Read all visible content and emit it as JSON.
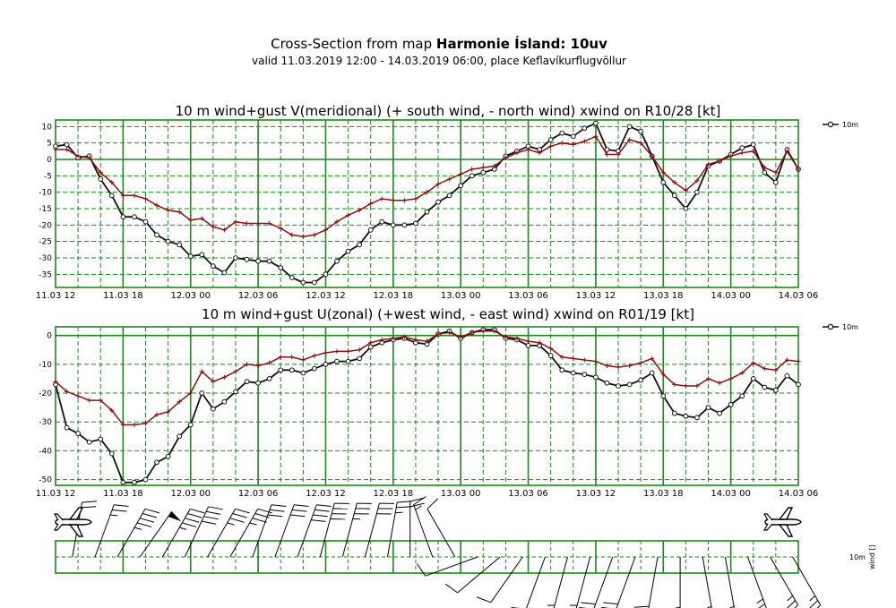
{
  "header": {
    "title_prefix": "Cross-Section from map ",
    "title_bold": "Harmonie Ísland: 10uv",
    "subtitle": "valid 11.03.2019 12:00 - 14.03.2019 06:00, place Keflavíkurflugvöllur"
  },
  "colors": {
    "grid": "#1a8a1a",
    "wind": "#111111",
    "gust": "#8b1010",
    "barb": "#000000"
  },
  "chart_data": [
    {
      "type": "line",
      "title": "10 m wind+gust V(meridional) (+ south wind, - north wind) xwind on R10/28 [kt]",
      "x_range": [
        0,
        66
      ],
      "x_ticks": [
        {
          "x": 0,
          "label": "11.03 12"
        },
        {
          "x": 6,
          "label": "11.03 18"
        },
        {
          "x": 12,
          "label": "12.03 00"
        },
        {
          "x": 18,
          "label": "12.03 06"
        },
        {
          "x": 24,
          "label": "12.03 12"
        },
        {
          "x": 30,
          "label": "12.03 18"
        },
        {
          "x": 36,
          "label": "13.03 00"
        },
        {
          "x": 42,
          "label": "13.03 06"
        },
        {
          "x": 48,
          "label": "13.03 12"
        },
        {
          "x": 54,
          "label": "13.03 18"
        },
        {
          "x": 60,
          "label": "14.03 00"
        },
        {
          "x": 66,
          "label": "14.03 06"
        }
      ],
      "ylim": [
        -39,
        12
      ],
      "y_ticks": [
        10,
        5,
        0,
        -5,
        -10,
        -15,
        -20,
        -25,
        -30,
        -35
      ],
      "grid": true,
      "legend_position": "top-right",
      "legend": "10m",
      "series": [
        {
          "role": "wind",
          "x": [
            0,
            1,
            2,
            3,
            4,
            5,
            6,
            7,
            8,
            9,
            10,
            11,
            12,
            13,
            14,
            15,
            16,
            17,
            18,
            19,
            20,
            21,
            22,
            23,
            24,
            25,
            26,
            27,
            28,
            29,
            30,
            31,
            32,
            33,
            34,
            35,
            36,
            37,
            38,
            39,
            40,
            41,
            42,
            43,
            44,
            45,
            46,
            47,
            48,
            49,
            50,
            51,
            52,
            53,
            54,
            55,
            56,
            57,
            58,
            59,
            60,
            61,
            62,
            63,
            64,
            65,
            66
          ],
          "values": [
            4,
            4.5,
            0.5,
            1,
            -6,
            -11,
            -17.5,
            -17.5,
            -19,
            -23,
            -25,
            -26,
            -29.5,
            -29,
            -32.5,
            -34.5,
            -30,
            -30.5,
            -31,
            -31,
            -33,
            -36,
            -37.5,
            -37.5,
            -35,
            -31,
            -28,
            -26,
            -21.5,
            -19,
            -20,
            -20,
            -19.5,
            -16,
            -13,
            -11,
            -8,
            -5,
            -4,
            -3,
            1,
            2.5,
            4,
            3,
            6,
            8,
            7,
            9.5,
            11,
            3,
            2.5,
            10,
            8.5,
            1,
            -7,
            -11,
            -15,
            -10,
            -2,
            -0.5,
            1.5,
            3.5,
            4.5,
            -4,
            -7,
            3,
            -3
          ]
        },
        {
          "role": "gust",
          "x": [
            0,
            1,
            2,
            3,
            4,
            5,
            6,
            7,
            8,
            9,
            10,
            11,
            12,
            13,
            14,
            15,
            16,
            17,
            18,
            19,
            20,
            21,
            22,
            23,
            24,
            25,
            26,
            27,
            28,
            29,
            30,
            31,
            32,
            33,
            34,
            35,
            36,
            37,
            38,
            39,
            40,
            41,
            42,
            43,
            44,
            45,
            46,
            47,
            48,
            49,
            50,
            51,
            52,
            53,
            54,
            55,
            56,
            57,
            58,
            59,
            60,
            61,
            62,
            63,
            64,
            65,
            66
          ],
          "values": [
            3,
            3,
            1,
            0.5,
            -4,
            -7,
            -11,
            -11,
            -12,
            -14,
            -15.5,
            -16,
            -18.5,
            -18,
            -20.5,
            -21.5,
            -19,
            -19.5,
            -19.5,
            -19.5,
            -21,
            -23,
            -23.5,
            -23,
            -21.5,
            -19,
            -17,
            -15.5,
            -13.5,
            -12,
            -12.5,
            -12.5,
            -12,
            -10,
            -7.5,
            -6,
            -4.5,
            -3,
            -2.5,
            -2,
            0.5,
            2,
            3,
            2,
            4,
            5,
            4.5,
            5.5,
            7,
            1.5,
            1.5,
            6,
            5,
            1,
            -4,
            -7,
            -9.5,
            -6.5,
            -1.5,
            -0.5,
            1,
            2,
            2.5,
            -2.5,
            -4,
            2.5,
            -3
          ]
        }
      ]
    },
    {
      "type": "line",
      "title": "10 m wind+gust U(zonal) (+west wind, - east wind) xwind on R01/19 [kt]",
      "x_range": [
        0,
        66
      ],
      "x_ticks": [
        {
          "x": 0,
          "label": "11.03 12"
        },
        {
          "x": 6,
          "label": "11.03 18"
        },
        {
          "x": 12,
          "label": "12.03 00"
        },
        {
          "x": 18,
          "label": "12.03 06"
        },
        {
          "x": 24,
          "label": "12.03 12"
        },
        {
          "x": 30,
          "label": "12.03 18"
        },
        {
          "x": 36,
          "label": "13.03 00"
        },
        {
          "x": 42,
          "label": "13.03 06"
        },
        {
          "x": 48,
          "label": "13.03 12"
        },
        {
          "x": 54,
          "label": "13.03 18"
        },
        {
          "x": 60,
          "label": "14.03 00"
        },
        {
          "x": 66,
          "label": "14.03 06"
        }
      ],
      "ylim": [
        -52,
        3
      ],
      "y_ticks": [
        0,
        -10,
        -20,
        -30,
        -40,
        -50
      ],
      "grid": true,
      "legend_position": "top-right",
      "legend": "10m",
      "series": [
        {
          "role": "wind",
          "x": [
            0,
            1,
            2,
            3,
            4,
            5,
            6,
            7,
            8,
            9,
            10,
            11,
            12,
            13,
            14,
            15,
            16,
            17,
            18,
            19,
            20,
            21,
            22,
            23,
            24,
            25,
            26,
            27,
            28,
            29,
            30,
            31,
            32,
            33,
            34,
            35,
            36,
            37,
            38,
            39,
            40,
            41,
            42,
            43,
            44,
            45,
            46,
            47,
            48,
            49,
            50,
            51,
            52,
            53,
            54,
            55,
            56,
            57,
            58,
            59,
            60,
            61,
            62,
            63,
            64,
            65,
            66
          ],
          "values": [
            -17,
            -32,
            -34,
            -37,
            -36,
            -41,
            -51,
            -51,
            -50,
            -44,
            -42,
            -35,
            -31,
            -20,
            -25.5,
            -23,
            -19.5,
            -16,
            -16.5,
            -15,
            -12,
            -12,
            -13,
            -11.5,
            -10,
            -9,
            -9,
            -8,
            -4,
            -2.5,
            -1.5,
            -1,
            -2.5,
            -3,
            0.5,
            1.5,
            -1,
            1,
            2,
            2,
            -1,
            -1.5,
            -3.5,
            -3.5,
            -7,
            -12,
            -13,
            -13.5,
            -14.5,
            -16.5,
            -17.5,
            -17,
            -15.5,
            -13,
            -21,
            -27,
            -28,
            -28.5,
            -25,
            -27,
            -24,
            -21,
            -15,
            -18,
            -19,
            -14,
            -17
          ]
        },
        {
          "role": "gust",
          "x": [
            0,
            1,
            2,
            3,
            4,
            5,
            6,
            7,
            8,
            9,
            10,
            11,
            12,
            13,
            14,
            15,
            16,
            17,
            18,
            19,
            20,
            21,
            22,
            23,
            24,
            25,
            26,
            27,
            28,
            29,
            30,
            31,
            32,
            33,
            34,
            35,
            36,
            37,
            38,
            39,
            40,
            41,
            42,
            43,
            44,
            45,
            46,
            47,
            48,
            49,
            50,
            51,
            52,
            53,
            54,
            55,
            56,
            57,
            58,
            59,
            60,
            61,
            62,
            63,
            64,
            65,
            66
          ],
          "values": [
            -16,
            -19.5,
            -21,
            -22.5,
            -22.5,
            -26,
            -31,
            -31,
            -30.5,
            -27.5,
            -26.5,
            -23,
            -20,
            -12.5,
            -16,
            -14.5,
            -12.5,
            -10,
            -10.5,
            -9.5,
            -7.5,
            -7.5,
            -8.5,
            -7,
            -6,
            -5.5,
            -5.5,
            -5,
            -2.5,
            -1.5,
            -1,
            -0.5,
            -1.5,
            -2,
            0.5,
            1,
            -0.5,
            1,
            1.5,
            1.5,
            -0.5,
            -1,
            -2,
            -2.5,
            -4.5,
            -7.5,
            -8,
            -8.5,
            -9,
            -10.5,
            -11,
            -10.5,
            -9.5,
            -8,
            -13.5,
            -17,
            -17.5,
            -17.5,
            -15,
            -16.5,
            -15,
            -13,
            -9.5,
            -11.5,
            -12,
            -8.5,
            -9
          ]
        }
      ]
    }
  ],
  "barb_panel": {
    "level_label": "10m",
    "axis_label": "wind []",
    "barbs": [
      {
        "x": 1.5,
        "dir": 10,
        "speed": 20
      },
      {
        "x": 3.5,
        "dir": 20,
        "speed": 25
      },
      {
        "x": 5.5,
        "dir": 30,
        "speed": 45
      },
      {
        "x": 7.5,
        "dir": 35,
        "speed": 50
      },
      {
        "x": 9.5,
        "dir": 30,
        "speed": 45
      },
      {
        "x": 11.5,
        "dir": 25,
        "speed": 40
      },
      {
        "x": 13.5,
        "dir": 30,
        "speed": 35
      },
      {
        "x": 15.5,
        "dir": 30,
        "speed": 35
      },
      {
        "x": 17.5,
        "dir": 20,
        "speed": 30
      },
      {
        "x": 19.5,
        "dir": 20,
        "speed": 30
      },
      {
        "x": 21.5,
        "dir": 20,
        "speed": 40
      },
      {
        "x": 23.5,
        "dir": 15,
        "speed": 40
      },
      {
        "x": 25.5,
        "dir": 15,
        "speed": 35
      },
      {
        "x": 27.5,
        "dir": 15,
        "speed": 30
      },
      {
        "x": 29.5,
        "dir": 10,
        "speed": 25
      },
      {
        "x": 31.5,
        "dir": 0,
        "speed": 20
      },
      {
        "x": 33.5,
        "dir": 340,
        "speed": 15
      },
      {
        "x": 35.5,
        "dir": 330,
        "speed": 10
      },
      {
        "x": 37.5,
        "dir": 250,
        "speed": 10
      },
      {
        "x": 39.5,
        "dir": 230,
        "speed": 10
      },
      {
        "x": 41.5,
        "dir": 215,
        "speed": 10
      },
      {
        "x": 43.5,
        "dir": 200,
        "speed": 10
      },
      {
        "x": 45.5,
        "dir": 195,
        "speed": 15
      },
      {
        "x": 47.5,
        "dir": 195,
        "speed": 15
      },
      {
        "x": 49.5,
        "dir": 200,
        "speed": 20
      },
      {
        "x": 51.5,
        "dir": 200,
        "speed": 20
      },
      {
        "x": 53.5,
        "dir": 190,
        "speed": 20
      },
      {
        "x": 55.5,
        "dir": 180,
        "speed": 20
      },
      {
        "x": 57.5,
        "dir": 170,
        "speed": 20
      },
      {
        "x": 59.5,
        "dir": 170,
        "speed": 20
      },
      {
        "x": 61.5,
        "dir": 160,
        "speed": 25
      },
      {
        "x": 63.5,
        "dir": 150,
        "speed": 25
      },
      {
        "x": 65.5,
        "dir": 150,
        "speed": 25
      }
    ]
  }
}
